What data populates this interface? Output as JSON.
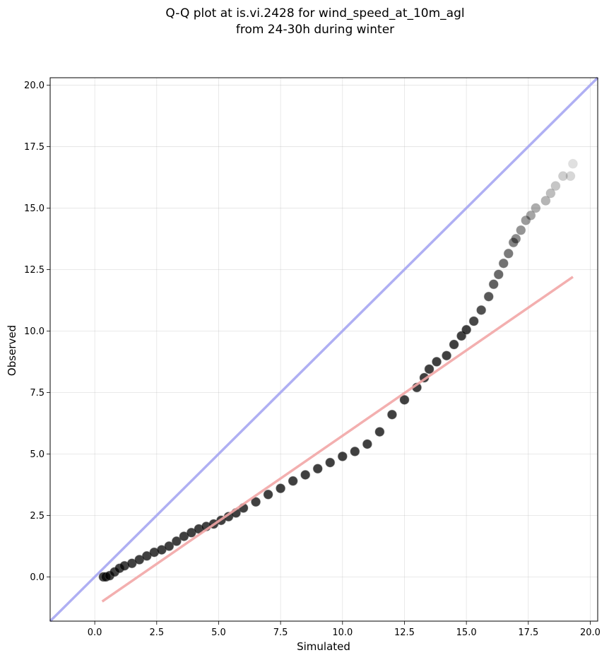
{
  "chart_data": {
    "type": "scatter",
    "title": "Q-Q plot at is.vi.2428 for wind_speed_at_10m_agl",
    "subtitle": "from 24-30h during winter",
    "xlabel": "Simulated",
    "ylabel": "Observed",
    "xlim": [
      -1.8,
      20.3
    ],
    "ylim": [
      -1.8,
      20.3
    ],
    "grid": true,
    "x_ticks": [
      0.0,
      2.5,
      5.0,
      7.5,
      10.0,
      12.5,
      15.0,
      17.5,
      20.0
    ],
    "y_ticks": [
      0.0,
      2.5,
      5.0,
      7.5,
      10.0,
      12.5,
      15.0,
      17.5,
      20.0
    ],
    "x_tick_labels": [
      "0.0",
      "2.5",
      "5.0",
      "7.5",
      "10.0",
      "12.5",
      "15.0",
      "17.5",
      "20.0"
    ],
    "y_tick_labels": [
      "0.0",
      "2.5",
      "5.0",
      "7.5",
      "10.0",
      "12.5",
      "15.0",
      "17.5",
      "20.0"
    ],
    "reference_lines": [
      {
        "kind": "identity",
        "color": "#a6a6f2",
        "points": [
          [
            -1.8,
            -1.8
          ],
          [
            20.3,
            20.3
          ]
        ]
      },
      {
        "kind": "fit",
        "color": "#f2a6a6",
        "points": [
          [
            0.3,
            -1.0
          ],
          [
            19.3,
            12.2
          ]
        ]
      }
    ],
    "point_color": "#000000",
    "series": [
      {
        "x": [
          0.35,
          0.45,
          0.6,
          0.8,
          1.0,
          1.2,
          1.5,
          1.8,
          2.1,
          2.4,
          2.7,
          3.0,
          3.3,
          3.6,
          3.9,
          4.2,
          4.5,
          4.8,
          5.1,
          5.4,
          5.7,
          6.0,
          6.5,
          7.0,
          7.5,
          8.0,
          8.5,
          9.0,
          9.5,
          10.0,
          10.5,
          11.0,
          11.5,
          12.0,
          12.5,
          13.0,
          13.3,
          13.5,
          13.8,
          14.2,
          14.5,
          14.8,
          15.0,
          15.3,
          15.6,
          15.9,
          16.1,
          16.3,
          16.5,
          16.7,
          16.9,
          17.0,
          17.2,
          17.4,
          17.6,
          17.8,
          18.2,
          18.4,
          18.6,
          18.9,
          19.2,
          19.3
        ],
        "y": [
          0.0,
          0.0,
          0.05,
          0.2,
          0.35,
          0.45,
          0.55,
          0.7,
          0.85,
          1.0,
          1.1,
          1.25,
          1.45,
          1.65,
          1.8,
          1.95,
          2.05,
          2.15,
          2.3,
          2.45,
          2.6,
          2.8,
          3.05,
          3.35,
          3.6,
          3.9,
          4.15,
          4.4,
          4.65,
          4.9,
          5.1,
          5.4,
          5.9,
          6.6,
          7.2,
          7.7,
          8.1,
          8.45,
          8.75,
          9.0,
          9.45,
          9.8,
          10.05,
          10.4,
          10.85,
          11.4,
          11.9,
          12.3,
          12.75,
          13.15,
          13.6,
          13.75,
          14.1,
          14.5,
          14.7,
          15.0,
          15.3,
          15.6,
          15.9,
          16.3,
          16.3,
          16.8
        ]
      }
    ]
  }
}
